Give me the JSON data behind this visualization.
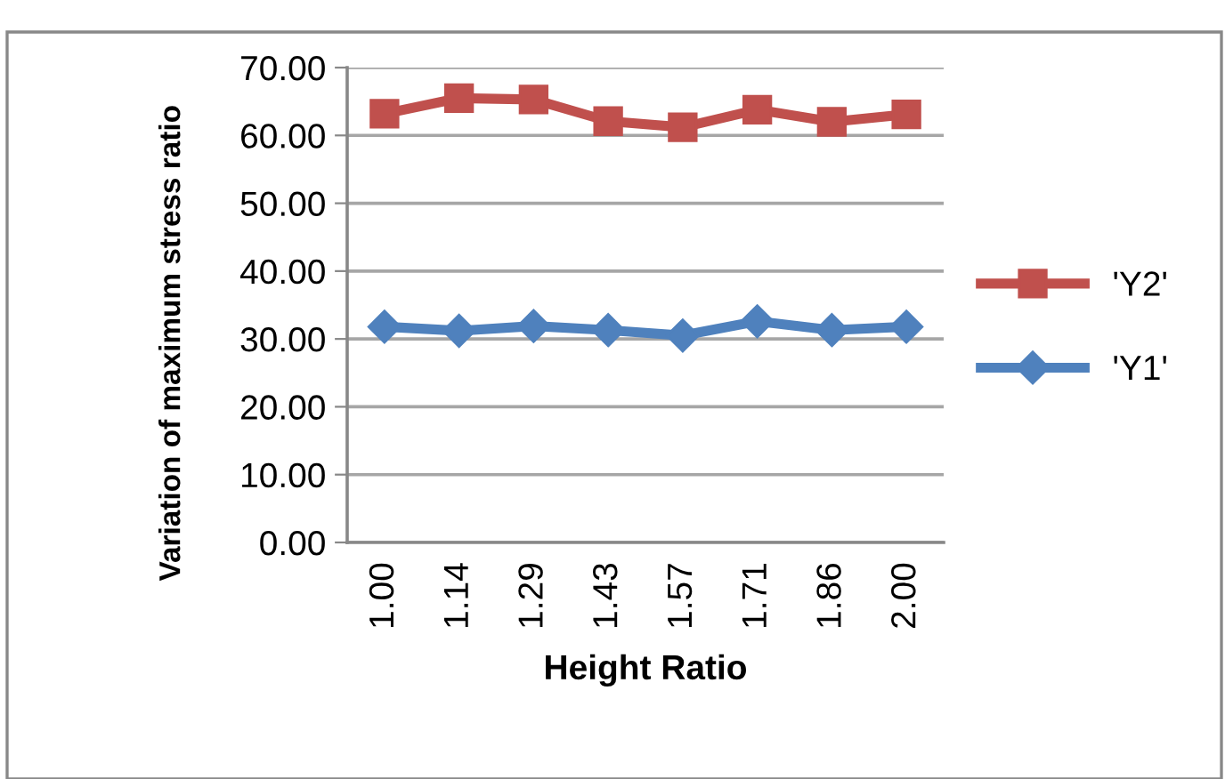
{
  "chart_data": {
    "type": "line",
    "xlabel": "Height Ratio",
    "ylabel": "Variation of maximum stress ratio",
    "categories": [
      "1.00",
      "1.14",
      "1.29",
      "1.43",
      "1.57",
      "1.71",
      "1.86",
      "2.00"
    ],
    "series": [
      {
        "name": "'Υ2'",
        "color": "#c0504d",
        "marker": "square",
        "values": [
          63.2,
          65.5,
          65.3,
          62.1,
          61.2,
          63.8,
          62.0,
          63.1
        ]
      },
      {
        "name": "'Υ1'",
        "color": "#4f81bd",
        "marker": "diamond",
        "values": [
          31.8,
          31.2,
          31.9,
          31.3,
          30.5,
          32.6,
          31.3,
          31.8
        ]
      }
    ],
    "ylim": [
      0,
      70
    ],
    "yticks": [
      {
        "value": 0,
        "label": "0.00"
      },
      {
        "value": 10,
        "label": "10.00"
      },
      {
        "value": 20,
        "label": "20.00"
      },
      {
        "value": 30,
        "label": "30.00"
      },
      {
        "value": 40,
        "label": "40.00"
      },
      {
        "value": 50,
        "label": "50.00"
      },
      {
        "value": 60,
        "label": "60.00"
      },
      {
        "value": 70,
        "label": "70.00"
      }
    ],
    "grid": "y",
    "legend": "right"
  }
}
